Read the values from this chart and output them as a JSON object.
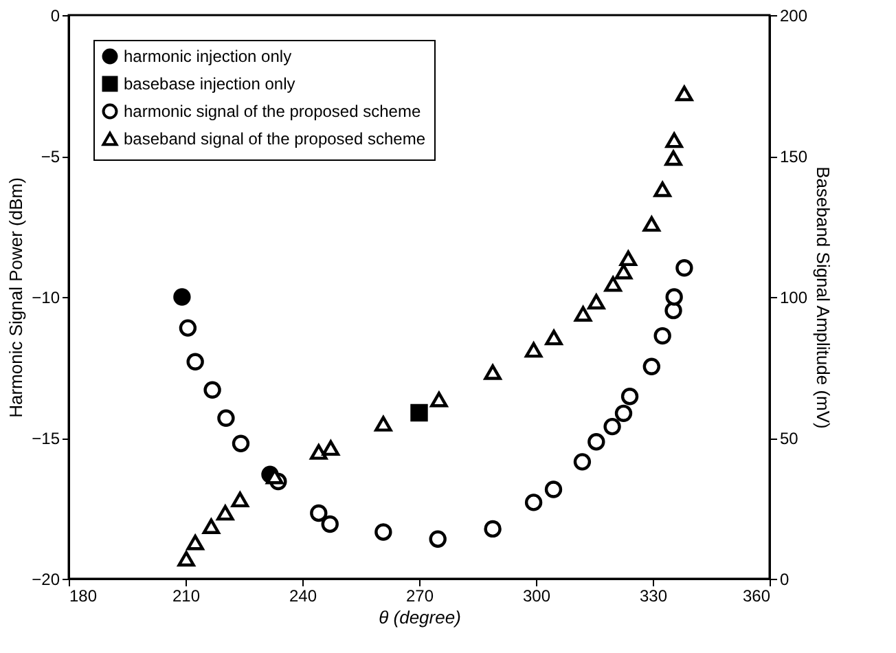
{
  "chart_data": {
    "type": "scatter",
    "xlabel": "θ (degree)",
    "ylabel": "Harmonic Signal Power (dBm)",
    "y2label": "Baseband Signal Amplitude (mV)",
    "xlim": [
      180,
      360
    ],
    "xticks": [
      180,
      210,
      240,
      270,
      300,
      330,
      360
    ],
    "ylim": [
      -20,
      0
    ],
    "yticks": [
      -20,
      -15,
      -10,
      -5,
      0
    ],
    "y2lim": [
      0,
      200
    ],
    "y2ticks": [
      0,
      50,
      100,
      150,
      200
    ],
    "grid": false,
    "legend": "top left",
    "series": [
      {
        "name": "harmonic injection only",
        "color": "#000000",
        "marker": "circle",
        "x": [
          209.1,
          231.7
        ],
        "values": [
          -10.0,
          -16.3
        ]
      },
      {
        "name": "basebase injection only",
        "color": "#000000",
        "marker": "square",
        "axis": "y2",
        "x": [
          270.0
        ],
        "values": [
          58.9
        ]
      },
      {
        "name": "harmonic signal of the proposed scheme",
        "color": "#000000",
        "marker": "circle",
        "x": [
          210.6,
          212.5,
          216.9,
          220.4,
          224.2,
          233.8,
          244.2,
          247.1,
          260.8,
          274.8,
          288.9,
          299.4,
          304.5,
          311.9,
          315.5,
          319.6,
          322.5,
          324.1,
          329.7,
          332.5,
          335.3,
          335.5,
          338.1
        ],
        "values": [
          -11.1,
          -12.3,
          -13.3,
          -14.3,
          -15.2,
          -16.55,
          -17.67,
          -18.06,
          -18.34,
          -18.59,
          -18.23,
          -17.29,
          -16.83,
          -15.85,
          -15.14,
          -14.6,
          -14.13,
          -13.53,
          -12.47,
          -11.38,
          -10.48,
          -10.0,
          -8.97
        ]
      },
      {
        "name": "baseband signal of the proposed scheme",
        "color": "#000000",
        "marker": "triangle",
        "axis": "y2",
        "x": [
          210.2,
          212.5,
          216.6,
          220.2,
          224.0,
          232.9,
          244.2,
          247.3,
          260.8,
          275.1,
          288.9,
          299.4,
          304.6,
          312.1,
          315.5,
          319.8,
          322.5,
          323.7,
          329.7,
          332.5,
          335.3,
          335.5,
          338.1
        ],
        "values": [
          7.1,
          12.9,
          18.6,
          23.4,
          28.1,
          36.3,
          45.0,
          46.4,
          55.0,
          63.6,
          73.3,
          81.2,
          85.6,
          94.0,
          98.3,
          104.6,
          109.0,
          113.7,
          125.9,
          138.2,
          149.3,
          155.6,
          172.2
        ]
      }
    ]
  }
}
